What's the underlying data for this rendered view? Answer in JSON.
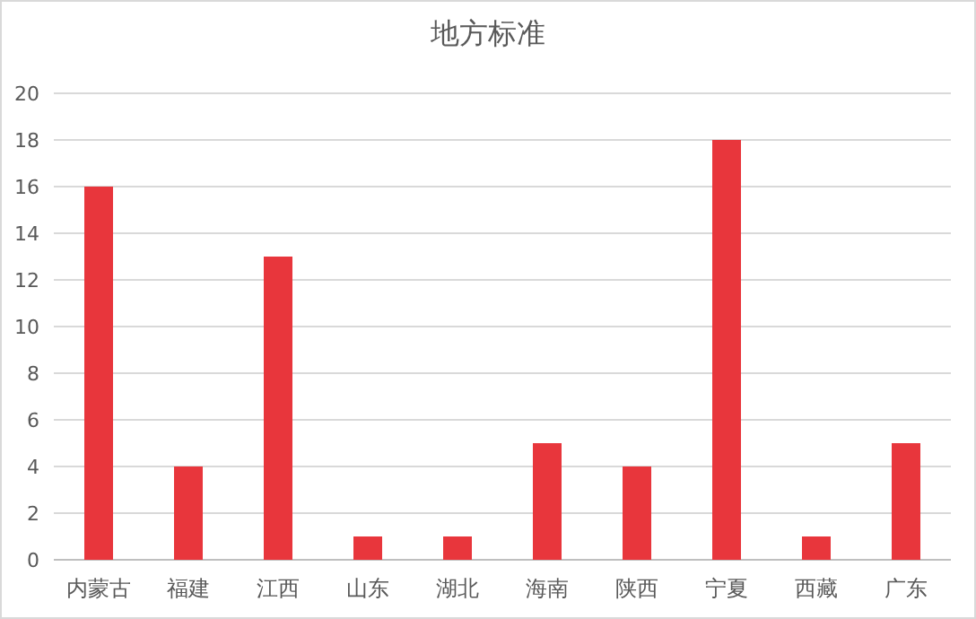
{
  "chart_data": {
    "type": "bar",
    "title": "地方标准",
    "categories": [
      "内蒙古",
      "福建",
      "江西",
      "山东",
      "湖北",
      "海南",
      "陕西",
      "宁夏",
      "西藏",
      "广东"
    ],
    "values": [
      16,
      4,
      13,
      1,
      1,
      5,
      4,
      18,
      1,
      5
    ],
    "color": "#e8363c",
    "ylim": [
      0,
      20
    ],
    "yticks": [
      0,
      2,
      4,
      6,
      8,
      10,
      12,
      14,
      16,
      18,
      20
    ],
    "grid": "y"
  }
}
